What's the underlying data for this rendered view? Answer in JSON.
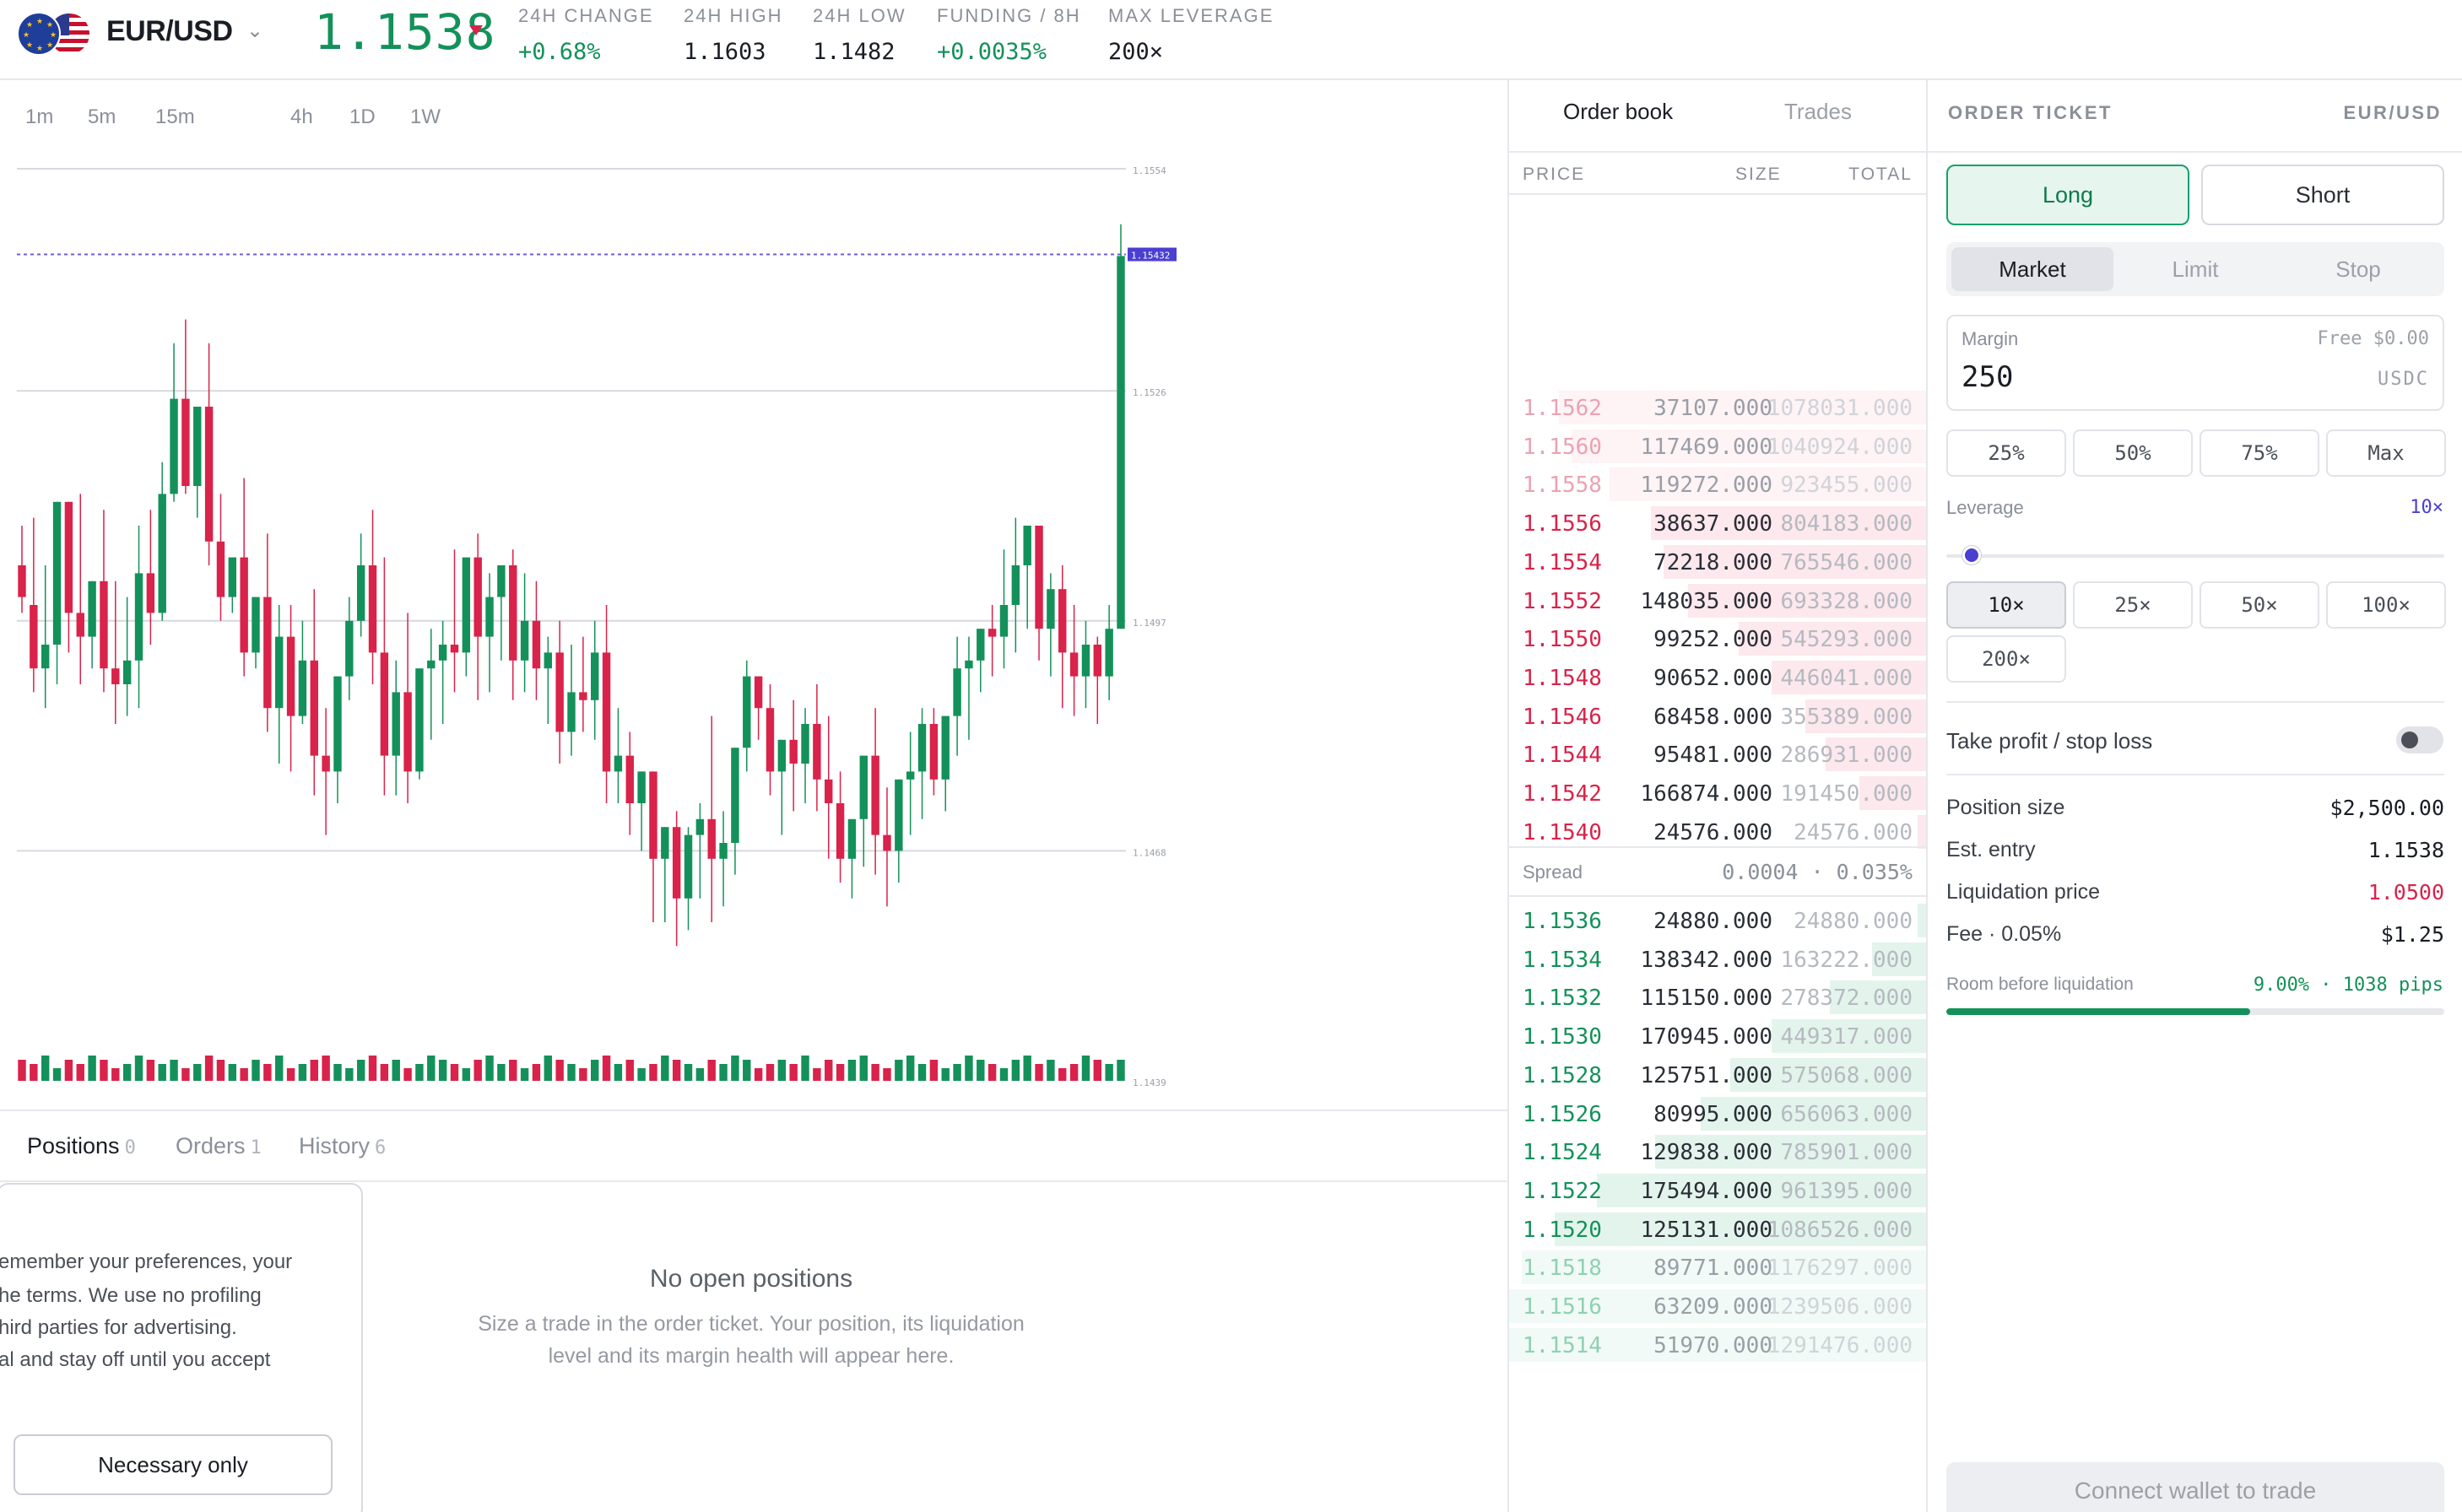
{
  "header": {
    "pair": "EUR/USD",
    "last_price": "1.1538",
    "stats": [
      {
        "label": "24H CHANGE",
        "value": "+0.68%",
        "positive": true
      },
      {
        "label": "24H HIGH",
        "value": "1.1603",
        "positive": false
      },
      {
        "label": "24H LOW",
        "value": "1.1482",
        "positive": false
      },
      {
        "label": "FUNDING / 8H",
        "value": "+0.0035%",
        "positive": true
      },
      {
        "label": "MAX LEVERAGE",
        "value": "200×",
        "positive": false
      }
    ]
  },
  "chart": {
    "timeframes": [
      "1m",
      "5m",
      "15m",
      "4h",
      "1D",
      "1W"
    ],
    "price_scale": [
      "1.1554",
      "1.1526",
      "1.1497",
      "1.1468",
      "1.1439"
    ],
    "last_tag": "1.15432",
    "colors": {
      "up": "#14915a",
      "down": "#d9234a",
      "last_line": "#6b5fd6"
    }
  },
  "chart_data": {
    "type": "candlestick",
    "ylim": [
      1.1439,
      1.1554
    ],
    "y_ticks": [
      1.1554,
      1.1526,
      1.1497,
      1.1468,
      1.1439
    ],
    "grid": true,
    "last_price": 1.15432,
    "candles": [
      [
        1.1504,
        1.1509,
        1.15,
        1.1498
      ],
      [
        1.1499,
        1.151,
        1.1491,
        1.1488
      ],
      [
        1.1491,
        1.1504,
        1.1494,
        1.1486
      ],
      [
        1.1494,
        1.1509,
        1.1512,
        1.1489
      ],
      [
        1.1512,
        1.1509,
        1.1498,
        1.1493
      ],
      [
        1.1498,
        1.1513,
        1.1495,
        1.1489
      ],
      [
        1.1495,
        1.1499,
        1.1502,
        1.1491
      ],
      [
        1.1502,
        1.1511,
        1.1491,
        1.1488
      ],
      [
        1.1491,
        1.1502,
        1.1489,
        1.1484
      ],
      [
        1.1489,
        1.15,
        1.1492,
        1.1485
      ],
      [
        1.1492,
        1.1509,
        1.1503,
        1.1486
      ],
      [
        1.1503,
        1.1511,
        1.1498,
        1.1494
      ],
      [
        1.1498,
        1.1517,
        1.1513,
        1.1497
      ],
      [
        1.1513,
        1.1532,
        1.1525,
        1.1512
      ],
      [
        1.1525,
        1.1535,
        1.1514,
        1.1513
      ],
      [
        1.1514,
        1.1518,
        1.1524,
        1.151
      ],
      [
        1.1524,
        1.1532,
        1.1507,
        1.1504
      ],
      [
        1.1507,
        1.1513,
        1.15,
        1.1497
      ],
      [
        1.15,
        1.1502,
        1.1505,
        1.1498
      ],
      [
        1.1505,
        1.1515,
        1.1493,
        1.149
      ],
      [
        1.1493,
        1.1497,
        1.15,
        1.1491
      ],
      [
        1.15,
        1.1508,
        1.1486,
        1.1483
      ],
      [
        1.1486,
        1.1499,
        1.1495,
        1.1479
      ],
      [
        1.1495,
        1.1499,
        1.1485,
        1.1478
      ],
      [
        1.1485,
        1.1497,
        1.1492,
        1.1484
      ],
      [
        1.1492,
        1.1501,
        1.148,
        1.1475
      ],
      [
        1.148,
        1.1486,
        1.1478,
        1.147
      ],
      [
        1.1478,
        1.1489,
        1.149,
        1.1474
      ],
      [
        1.149,
        1.15,
        1.1497,
        1.1487
      ],
      [
        1.1497,
        1.1508,
        1.1504,
        1.1495
      ],
      [
        1.1504,
        1.1511,
        1.1493,
        1.1489
      ],
      [
        1.1493,
        1.1505,
        1.148,
        1.1475
      ],
      [
        1.148,
        1.1492,
        1.1488,
        1.1475
      ],
      [
        1.1488,
        1.1498,
        1.1478,
        1.1474
      ],
      [
        1.1478,
        1.1489,
        1.1491,
        1.1477
      ],
      [
        1.1491,
        1.1496,
        1.1492,
        1.1482
      ],
      [
        1.1492,
        1.1497,
        1.1494,
        1.1484
      ],
      [
        1.1494,
        1.1506,
        1.1493,
        1.1488
      ],
      [
        1.1493,
        1.1505,
        1.1505,
        1.149
      ],
      [
        1.1505,
        1.1508,
        1.1495,
        1.1487
      ],
      [
        1.1495,
        1.1503,
        1.15,
        1.1488
      ],
      [
        1.15,
        1.1499,
        1.1504,
        1.1492
      ],
      [
        1.1504,
        1.1506,
        1.1492,
        1.1487
      ],
      [
        1.1492,
        1.1503,
        1.1497,
        1.1488
      ],
      [
        1.1497,
        1.1502,
        1.1491,
        1.1487
      ],
      [
        1.1491,
        1.1495,
        1.1493,
        1.1484
      ],
      [
        1.1493,
        1.1497,
        1.1483,
        1.1479
      ],
      [
        1.1483,
        1.1494,
        1.1488,
        1.148
      ],
      [
        1.1488,
        1.1495,
        1.1487,
        1.1483
      ],
      [
        1.1487,
        1.1497,
        1.1493,
        1.1482
      ],
      [
        1.1493,
        1.1499,
        1.1478,
        1.1474
      ],
      [
        1.1478,
        1.1486,
        1.148,
        1.1474
      ],
      [
        1.148,
        1.1483,
        1.1474,
        1.147
      ],
      [
        1.1474,
        1.1478,
        1.1478,
        1.1468
      ],
      [
        1.1478,
        1.1477,
        1.1467,
        1.1459
      ],
      [
        1.1467,
        1.1467,
        1.1471,
        1.1459
      ],
      [
        1.1471,
        1.1473,
        1.1462,
        1.1456
      ],
      [
        1.1462,
        1.1471,
        1.147,
        1.1458
      ],
      [
        1.147,
        1.1474,
        1.1472,
        1.1462
      ],
      [
        1.1472,
        1.1485,
        1.1467,
        1.1459
      ],
      [
        1.1467,
        1.1473,
        1.1469,
        1.1461
      ],
      [
        1.1469,
        1.1472,
        1.1481,
        1.1465
      ],
      [
        1.1481,
        1.1492,
        1.149,
        1.1478
      ],
      [
        1.149,
        1.149,
        1.1486,
        1.1482
      ],
      [
        1.1486,
        1.1489,
        1.1478,
        1.1475
      ],
      [
        1.1478,
        1.1482,
        1.1482,
        1.147
      ],
      [
        1.1482,
        1.1487,
        1.1479,
        1.1473
      ],
      [
        1.1479,
        1.1486,
        1.1484,
        1.1474
      ],
      [
        1.1484,
        1.1489,
        1.1477,
        1.1473
      ],
      [
        1.1477,
        1.1485,
        1.1474,
        1.1467
      ],
      [
        1.1474,
        1.1478,
        1.1467,
        1.1464
      ],
      [
        1.1467,
        1.1472,
        1.1472,
        1.1462
      ],
      [
        1.1472,
        1.1479,
        1.148,
        1.1466
      ],
      [
        1.148,
        1.1486,
        1.147,
        1.1465
      ],
      [
        1.147,
        1.1476,
        1.1468,
        1.1461
      ],
      [
        1.1468,
        1.1472,
        1.1477,
        1.1464
      ],
      [
        1.1477,
        1.1483,
        1.1478,
        1.147
      ],
      [
        1.1478,
        1.1486,
        1.1484,
        1.1472
      ],
      [
        1.1484,
        1.1486,
        1.1477,
        1.1475
      ],
      [
        1.1477,
        1.1483,
        1.1485,
        1.1473
      ],
      [
        1.1485,
        1.1495,
        1.1491,
        1.148
      ],
      [
        1.1491,
        1.1495,
        1.1492,
        1.1482
      ],
      [
        1.1492,
        1.1495,
        1.1496,
        1.1488
      ],
      [
        1.1496,
        1.1499,
        1.1495,
        1.149
      ],
      [
        1.1495,
        1.1506,
        1.1499,
        1.1491
      ],
      [
        1.1499,
        1.151,
        1.1504,
        1.1493
      ],
      [
        1.1504,
        1.1509,
        1.1509,
        1.1496
      ],
      [
        1.1509,
        1.1504,
        1.1496,
        1.1492
      ],
      [
        1.1496,
        1.1503,
        1.1501,
        1.149
      ],
      [
        1.1501,
        1.1504,
        1.1493,
        1.1486
      ],
      [
        1.1493,
        1.1499,
        1.149,
        1.1485
      ],
      [
        1.149,
        1.1497,
        1.1494,
        1.1486
      ],
      [
        1.1494,
        1.1495,
        1.149,
        1.1484
      ],
      [
        1.149,
        1.1499,
        1.1496,
        1.1487
      ],
      [
        1.1496,
        1.1547,
        1.1543,
        1.1496
      ]
    ],
    "volume": [
      5,
      4,
      6,
      3,
      5,
      4,
      6,
      5,
      3,
      4,
      6,
      5,
      4,
      5,
      3,
      4,
      6,
      5,
      4,
      3,
      5,
      4,
      6,
      3,
      4,
      5,
      6,
      4,
      3,
      5,
      6,
      4,
      5,
      3,
      4,
      6,
      5,
      4,
      3,
      5,
      6,
      4,
      5,
      3,
      4,
      6,
      5,
      4,
      3,
      5,
      6,
      4,
      5,
      3,
      4,
      6,
      5,
      4,
      3,
      5,
      4,
      6,
      5,
      3,
      4,
      5,
      4,
      6,
      3,
      5,
      4,
      5,
      6,
      4,
      3,
      5,
      6,
      4,
      5,
      3,
      4,
      6,
      5,
      4,
      3,
      5,
      6,
      4,
      5,
      3,
      4,
      6,
      5,
      4,
      5
    ]
  },
  "bottom": {
    "tabs": [
      {
        "label": "Positions",
        "count": "0"
      },
      {
        "label": "Orders",
        "count": "1"
      },
      {
        "label": "History",
        "count": "6"
      }
    ],
    "cookie_lines": [
      "emember your preferences, your",
      "he terms. We use no profiling",
      "hird parties for advertising.",
      "al and stay off until you accept"
    ],
    "cookie_button": "Necessary only",
    "empty_title": "No open positions",
    "empty_sub_1": "Size a trade in the order ticket. Your position, its liquidation",
    "empty_sub_2": "level and its margin health will appear here."
  },
  "book": {
    "tabs": [
      "Order book",
      "Trades"
    ],
    "headers": {
      "price": "PRICE",
      "size": "SIZE",
      "total": "TOTAL"
    },
    "asks": [
      {
        "price": "1.1562",
        "size": "37107.000",
        "total": "1078031.000",
        "depth": 0.88,
        "faded": true
      },
      {
        "price": "1.1560",
        "size": "117469.000",
        "total": "1040924.000",
        "depth": 0.85,
        "faded": true
      },
      {
        "price": "1.1558",
        "size": "119272.000",
        "total": "923455.000",
        "depth": 0.76,
        "faded": true
      },
      {
        "price": "1.1556",
        "size": "38637.000",
        "total": "804183.000",
        "depth": 0.66,
        "faded": false
      },
      {
        "price": "1.1554",
        "size": "72218.000",
        "total": "765546.000",
        "depth": 0.63,
        "faded": false
      },
      {
        "price": "1.1552",
        "size": "148035.000",
        "total": "693328.000",
        "depth": 0.57,
        "faded": false
      },
      {
        "price": "1.1550",
        "size": "99252.000",
        "total": "545293.000",
        "depth": 0.45,
        "faded": false
      },
      {
        "price": "1.1548",
        "size": "90652.000",
        "total": "446041.000",
        "depth": 0.37,
        "faded": false
      },
      {
        "price": "1.1546",
        "size": "68458.000",
        "total": "355389.000",
        "depth": 0.29,
        "faded": false
      },
      {
        "price": "1.1544",
        "size": "95481.000",
        "total": "286931.000",
        "depth": 0.24,
        "faded": false
      },
      {
        "price": "1.1542",
        "size": "166874.000",
        "total": "191450.000",
        "depth": 0.16,
        "faded": false
      },
      {
        "price": "1.1540",
        "size": "24576.000",
        "total": "24576.000",
        "depth": 0.02,
        "faded": false
      }
    ],
    "spread_label": "Spread",
    "spread_value": "0.0004 · 0.035%",
    "bids": [
      {
        "price": "1.1536",
        "size": "24880.000",
        "total": "24880.000",
        "depth": 0.02,
        "faded": false
      },
      {
        "price": "1.1534",
        "size": "138342.000",
        "total": "163222.000",
        "depth": 0.13,
        "faded": false
      },
      {
        "price": "1.1532",
        "size": "115150.000",
        "total": "278372.000",
        "depth": 0.23,
        "faded": false
      },
      {
        "price": "1.1530",
        "size": "170945.000",
        "total": "449317.000",
        "depth": 0.37,
        "faded": false
      },
      {
        "price": "1.1528",
        "size": "125751.000",
        "total": "575068.000",
        "depth": 0.47,
        "faded": false
      },
      {
        "price": "1.1526",
        "size": "80995.000",
        "total": "656063.000",
        "depth": 0.54,
        "faded": false
      },
      {
        "price": "1.1524",
        "size": "129838.000",
        "total": "785901.000",
        "depth": 0.65,
        "faded": false
      },
      {
        "price": "1.1522",
        "size": "175494.000",
        "total": "961395.000",
        "depth": 0.79,
        "faded": false
      },
      {
        "price": "1.1520",
        "size": "125131.000",
        "total": "1086526.000",
        "depth": 0.89,
        "faded": false
      },
      {
        "price": "1.1518",
        "size": "89771.000",
        "total": "1176297.000",
        "depth": 0.97,
        "faded": true
      },
      {
        "price": "1.1516",
        "size": "63209.000",
        "total": "1239506.000",
        "depth": 1.0,
        "faded": true
      },
      {
        "price": "1.1514",
        "size": "51970.000",
        "total": "1291476.000",
        "depth": 1.0,
        "faded": true
      }
    ]
  },
  "ticket": {
    "title": "ORDER TICKET",
    "symbol": "EUR/USD",
    "long_label": "Long",
    "short_label": "Short",
    "order_types": [
      "Market",
      "Limit",
      "Stop"
    ],
    "margin_label": "Margin",
    "margin_free": "Free $0.00",
    "margin_value": "250",
    "margin_unit": "USDC",
    "percent_chips": [
      "25%",
      "50%",
      "75%",
      "Max"
    ],
    "leverage_label": "Leverage",
    "leverage_value": "10×",
    "leverage_level": 0.05,
    "leverage_chips": [
      "10×",
      "25×",
      "50×",
      "100×",
      "200×"
    ],
    "tpsl_label": "Take profit / stop loss",
    "summary": [
      {
        "key": "Position size",
        "value": "$2,500.00",
        "negative": false
      },
      {
        "key": "Est. entry",
        "value": "1.1538",
        "negative": false
      },
      {
        "key": "Liquidation price",
        "value": "1.0500",
        "negative": true
      },
      {
        "key": "Fee · 0.05%",
        "value": "$1.25",
        "negative": false
      }
    ],
    "room_label": "Room before liquidation",
    "room_value": "9.00% · 1038 pips",
    "room_fraction": 0.61,
    "connect_label": "Connect wallet to trade"
  }
}
